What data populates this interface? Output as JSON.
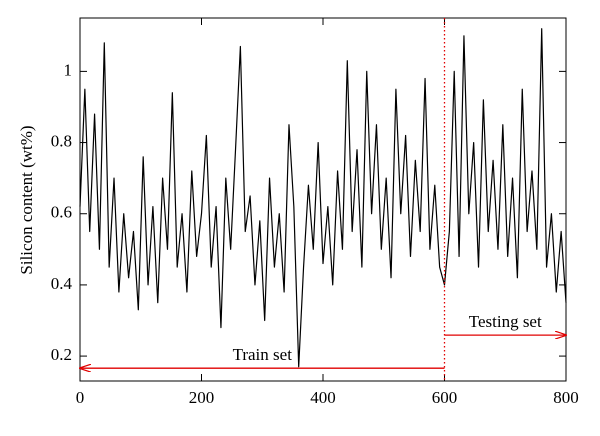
{
  "chart_data": {
    "type": "line",
    "y_label": "Silicon content (wt%)",
    "x": [
      0,
      8,
      16,
      24,
      32,
      40,
      48,
      56,
      64,
      72,
      80,
      88,
      96,
      104,
      112,
      120,
      128,
      136,
      144,
      152,
      160,
      168,
      176,
      184,
      192,
      200,
      208,
      216,
      224,
      232,
      240,
      248,
      256,
      264,
      272,
      280,
      288,
      296,
      304,
      312,
      320,
      328,
      336,
      344,
      352,
      360,
      368,
      376,
      384,
      392,
      400,
      408,
      416,
      424,
      432,
      440,
      448,
      456,
      464,
      472,
      480,
      488,
      496,
      504,
      512,
      520,
      528,
      536,
      544,
      552,
      560,
      568,
      576,
      584,
      592,
      600,
      608,
      616,
      624,
      632,
      640,
      648,
      656,
      664,
      672,
      680,
      688,
      696,
      704,
      712,
      720,
      728,
      736,
      744,
      752,
      760,
      768,
      776,
      784,
      792,
      800
    ],
    "series": [
      {
        "color": "#000000",
        "values": [
          0.62,
          0.95,
          0.55,
          0.88,
          0.5,
          1.08,
          0.45,
          0.7,
          0.38,
          0.6,
          0.42,
          0.55,
          0.33,
          0.76,
          0.4,
          0.62,
          0.35,
          0.7,
          0.5,
          0.94,
          0.45,
          0.6,
          0.38,
          0.72,
          0.48,
          0.6,
          0.82,
          0.45,
          0.62,
          0.28,
          0.7,
          0.5,
          0.78,
          1.07,
          0.55,
          0.65,
          0.4,
          0.58,
          0.3,
          0.7,
          0.45,
          0.6,
          0.38,
          0.85,
          0.62,
          0.17,
          0.45,
          0.68,
          0.5,
          0.8,
          0.46,
          0.62,
          0.4,
          0.72,
          0.5,
          1.03,
          0.55,
          0.78,
          0.45,
          1.0,
          0.6,
          0.85,
          0.5,
          0.7,
          0.42,
          0.95,
          0.6,
          0.82,
          0.48,
          0.75,
          0.55,
          0.98,
          0.5,
          0.68,
          0.45,
          0.4,
          0.55,
          1.0,
          0.48,
          1.1,
          0.6,
          0.8,
          0.45,
          0.92,
          0.55,
          0.75,
          0.5,
          0.85,
          0.48,
          0.7,
          0.42,
          0.95,
          0.55,
          0.72,
          0.5,
          1.12,
          0.45,
          0.6,
          0.38,
          0.55,
          0.35
        ]
      }
    ],
    "xlim": [
      0,
      800
    ],
    "ylim": [
      0.13,
      1.15
    ],
    "xticks": [
      0,
      200,
      400,
      600,
      800
    ],
    "yticks": [
      0.2,
      0.4,
      0.6,
      0.8,
      1
    ],
    "split": {
      "x": 600,
      "color": "#e00000"
    },
    "annotations": [
      {
        "text": "Train set",
        "x": [
          600,
          0
        ],
        "y": 0.166,
        "color": "#e00000"
      },
      {
        "text": "Testing set",
        "x": [
          600,
          800
        ],
        "y": 0.259,
        "color": "#e00000"
      }
    ]
  }
}
